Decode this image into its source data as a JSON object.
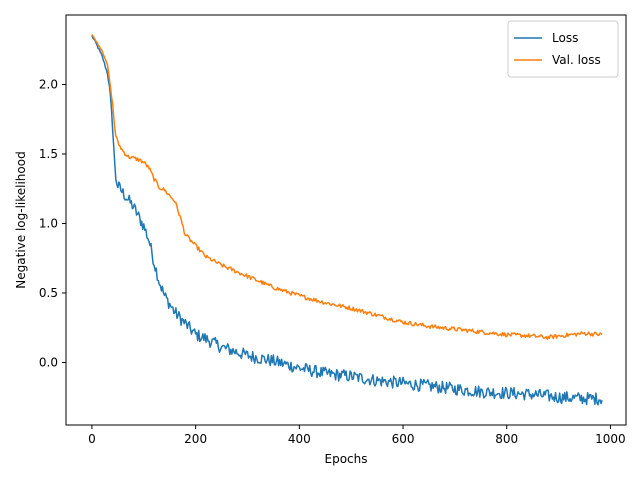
{
  "chart_data": {
    "type": "line",
    "xlabel": "Epochs",
    "ylabel": "Negative log-likelihood",
    "xlim": [
      -50,
      1030
    ],
    "ylim": [
      -0.45,
      2.5
    ],
    "xticks": [
      "0",
      "200",
      "400",
      "600",
      "800",
      "1000"
    ],
    "xtick_values": [
      0,
      200,
      400,
      600,
      800,
      1000
    ],
    "yticks": [
      "0.0",
      "0.5",
      "1.0",
      "1.5",
      "2.0"
    ],
    "ytick_values": [
      0.0,
      0.5,
      1.0,
      1.5,
      2.0
    ],
    "grid": false,
    "legend_position": "top-right",
    "series": [
      {
        "name": "Loss",
        "color": "#1f77b4",
        "noise": 0.045,
        "points": [
          [
            0,
            2.35
          ],
          [
            10,
            2.28
          ],
          [
            20,
            2.2
          ],
          [
            30,
            2.08
          ],
          [
            35,
            1.95
          ],
          [
            40,
            1.7
          ],
          [
            45,
            1.35
          ],
          [
            50,
            1.27
          ],
          [
            60,
            1.22
          ],
          [
            70,
            1.17
          ],
          [
            80,
            1.12
          ],
          [
            90,
            1.05
          ],
          [
            100,
            0.98
          ],
          [
            110,
            0.88
          ],
          [
            120,
            0.72
          ],
          [
            130,
            0.58
          ],
          [
            140,
            0.48
          ],
          [
            150,
            0.42
          ],
          [
            160,
            0.36
          ],
          [
            170,
            0.32
          ],
          [
            180,
            0.28
          ],
          [
            200,
            0.2
          ],
          [
            220,
            0.17
          ],
          [
            250,
            0.11
          ],
          [
            300,
            0.05
          ],
          [
            350,
            0.01
          ],
          [
            400,
            -0.04
          ],
          [
            450,
            -0.08
          ],
          [
            500,
            -0.1
          ],
          [
            550,
            -0.13
          ],
          [
            600,
            -0.15
          ],
          [
            650,
            -0.17
          ],
          [
            700,
            -0.19
          ],
          [
            750,
            -0.21
          ],
          [
            800,
            -0.22
          ],
          [
            850,
            -0.23
          ],
          [
            900,
            -0.25
          ],
          [
            950,
            -0.26
          ],
          [
            985,
            -0.26
          ]
        ]
      },
      {
        "name": "Val. loss",
        "color": "#ff7f0e",
        "noise": 0.015,
        "points": [
          [
            0,
            2.36
          ],
          [
            10,
            2.3
          ],
          [
            20,
            2.24
          ],
          [
            30,
            2.14
          ],
          [
            35,
            2.0
          ],
          [
            40,
            1.85
          ],
          [
            45,
            1.65
          ],
          [
            50,
            1.58
          ],
          [
            60,
            1.52
          ],
          [
            70,
            1.48
          ],
          [
            80,
            1.47
          ],
          [
            90,
            1.46
          ],
          [
            100,
            1.44
          ],
          [
            110,
            1.4
          ],
          [
            120,
            1.32
          ],
          [
            130,
            1.26
          ],
          [
            140,
            1.24
          ],
          [
            150,
            1.2
          ],
          [
            160,
            1.16
          ],
          [
            170,
            1.05
          ],
          [
            180,
            0.92
          ],
          [
            190,
            0.88
          ],
          [
            200,
            0.84
          ],
          [
            220,
            0.76
          ],
          [
            250,
            0.7
          ],
          [
            300,
            0.62
          ],
          [
            350,
            0.54
          ],
          [
            400,
            0.48
          ],
          [
            450,
            0.43
          ],
          [
            500,
            0.39
          ],
          [
            550,
            0.34
          ],
          [
            600,
            0.29
          ],
          [
            650,
            0.26
          ],
          [
            700,
            0.24
          ],
          [
            750,
            0.22
          ],
          [
            800,
            0.2
          ],
          [
            850,
            0.19
          ],
          [
            880,
            0.18
          ],
          [
            900,
            0.19
          ],
          [
            950,
            0.21
          ],
          [
            985,
            0.2
          ]
        ]
      }
    ]
  }
}
